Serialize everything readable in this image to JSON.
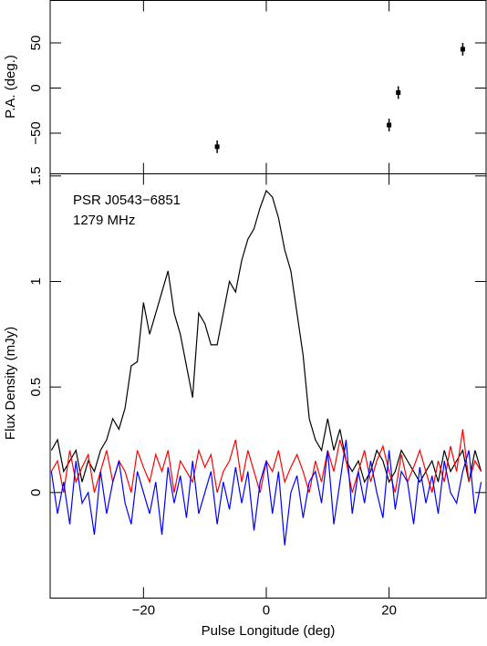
{
  "chart_data": [
    {
      "type": "scatter",
      "y_label": "P.A. (deg.)",
      "xlim": [
        -35.2,
        35.8
      ],
      "ylim": [
        -95,
        97
      ],
      "yticks": [
        {
          "value": -50,
          "label": "−50"
        },
        0,
        50
      ],
      "x": [
        -8,
        20,
        21.5,
        32
      ],
      "values": [
        -65,
        -41,
        -5,
        43
      ],
      "errors": [
        7,
        7,
        7,
        7
      ],
      "color": "#000000"
    },
    {
      "type": "line",
      "x_label": "Pulse Longitude (deg)",
      "y_label": "Flux Density (mJy)",
      "annotations": [
        "PSR J0543−6851",
        "1279 MHz"
      ],
      "xlim": [
        -35.2,
        35.8
      ],
      "ylim": [
        -0.5,
        1.51
      ],
      "xticks": [
        {
          "value": -20,
          "label": "−20"
        },
        0,
        20
      ],
      "yticks": [
        0,
        0.5,
        1,
        1.5
      ],
      "x": [
        -35,
        -34,
        -33,
        -32,
        -31,
        -30,
        -29,
        -28,
        -27,
        -26,
        -25,
        -24,
        -23,
        -22,
        -21,
        -20,
        -19,
        -18,
        -17,
        -16,
        -15,
        -14,
        -13,
        -12,
        -11,
        -10,
        -9,
        -8,
        -7,
        -6,
        -5,
        -4,
        -3,
        -2,
        -1,
        0,
        1,
        2,
        3,
        4,
        5,
        6,
        7,
        8,
        9,
        10,
        11,
        12,
        13,
        14,
        15,
        16,
        17,
        18,
        19,
        20,
        21,
        22,
        23,
        24,
        25,
        26,
        27,
        28,
        29,
        30,
        31,
        32,
        33,
        34,
        35
      ],
      "series": [
        {
          "color": "#000000",
          "values": [
            0.2,
            0.25,
            0.1,
            0.15,
            0.2,
            0.05,
            0.15,
            0.1,
            0.2,
            0.25,
            0.35,
            0.3,
            0.4,
            0.6,
            0.62,
            0.9,
            0.75,
            0.85,
            0.95,
            1.05,
            0.85,
            0.75,
            0.6,
            0.45,
            0.85,
            0.8,
            0.7,
            0.7,
            0.85,
            1.0,
            0.95,
            1.1,
            1.2,
            1.25,
            1.35,
            1.43,
            1.4,
            1.3,
            1.15,
            1.05,
            0.85,
            0.65,
            0.35,
            0.25,
            0.2,
            0.35,
            0.2,
            0.3,
            0.15,
            0.1,
            0.15,
            0.05,
            0.1,
            0.2,
            0.15,
            0.05,
            0.1,
            0.2,
            0.15,
            0.1,
            0.05,
            0.1,
            0.15,
            0.05,
            0.2,
            0.1,
            0.15,
            0.2,
            0.05,
            0.2,
            0.1
          ]
        },
        {
          "color": "#ff0000",
          "values": [
            0.1,
            0.15,
            0,
            0.2,
            0.05,
            0.12,
            0.18,
            0,
            0.1,
            0.2,
            0.05,
            0.15,
            0.1,
            0,
            0.2,
            0.12,
            0.05,
            0.18,
            0.1,
            0.2,
            0,
            0.15,
            0.1,
            0.05,
            0.2,
            0.12,
            0.18,
            0,
            0.1,
            0.15,
            0.25,
            0.05,
            0.2,
            0.1,
            0,
            0.15,
            0.1,
            0.2,
            0.05,
            0.12,
            0.18,
            0.1,
            0,
            0.15,
            0.05,
            0.2,
            0.1,
            0.25,
            0.15,
            0,
            0.1,
            0.2,
            0.05,
            0.15,
            0.22,
            0.1,
            0,
            0.18,
            0.05,
            0.12,
            0.2,
            0.1,
            0,
            0.15,
            0.05,
            0.22,
            0.1,
            0.3,
            0.05,
            0.15,
            0.1
          ]
        },
        {
          "color": "#0000ff",
          "values": [
            0.1,
            -0.1,
            0.05,
            -0.15,
            0.15,
            -0.05,
            0,
            -0.2,
            0.1,
            -0.1,
            0.05,
            0.15,
            -0.05,
            -0.15,
            0.1,
            0,
            -0.1,
            0.05,
            -0.2,
            0.12,
            -0.05,
            0.08,
            -0.12,
            0.15,
            -0.1,
            0,
            0.1,
            -0.15,
            0.05,
            -0.08,
            0.12,
            -0.05,
            0.1,
            -0.18,
            0.05,
            0.15,
            -0.1,
            0.1,
            -0.25,
            0,
            0.08,
            -0.12,
            0.05,
            0.1,
            -0.05,
            0.2,
            -0.15,
            0.05,
            0.25,
            -0.1,
            0.1,
            -0.05,
            0.15,
            0,
            -0.12,
            0.2,
            -0.08,
            0.1,
            0.05,
            -0.15,
            0.12,
            -0.05,
            0.08,
            -0.1,
            0.15,
            0,
            -0.05,
            0.1,
            0.2,
            -0.1,
            0.05
          ]
        }
      ]
    }
  ]
}
